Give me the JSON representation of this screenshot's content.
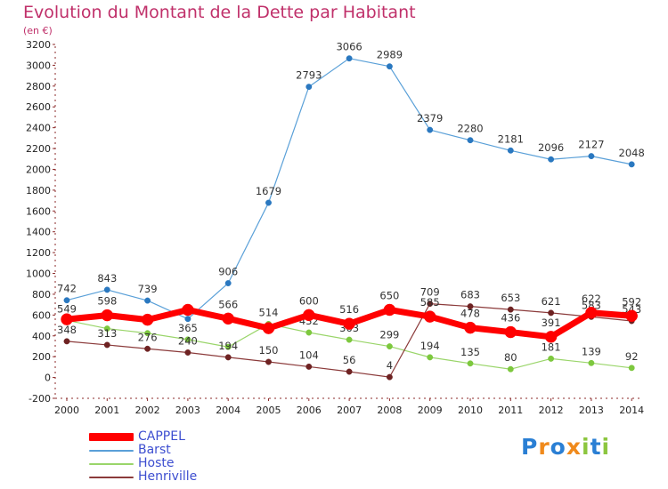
{
  "header": {
    "title": "Evolution du Montant de la Dette par Habitant",
    "subtitle": "(en €)"
  },
  "logo": {
    "text": "Proxiti",
    "letters": [
      {
        "char": "P",
        "color": "#2a7fd4"
      },
      {
        "char": "r",
        "color": "#f08a1c"
      },
      {
        "char": "o",
        "color": "#2a7fd4"
      },
      {
        "char": "x",
        "color": "#f08a1c"
      },
      {
        "char": "i",
        "color": "#8cc63f"
      },
      {
        "char": "t",
        "color": "#2a7fd4"
      },
      {
        "char": "i",
        "color": "#8cc63f"
      }
    ]
  },
  "chart_data": {
    "type": "line",
    "title": "Evolution du Montant de la Dette par Habitant",
    "subtitle": "(en €)",
    "xlabel": "",
    "ylabel": "",
    "x": [
      "2000",
      "2001",
      "2002",
      "2003",
      "2004",
      "2005",
      "2006",
      "2007",
      "2008",
      "2009",
      "2010",
      "2011",
      "2012",
      "2013",
      "2014"
    ],
    "ylim": [
      -200,
      3200
    ],
    "yticks": [
      -200,
      0,
      200,
      400,
      600,
      800,
      1000,
      1200,
      1400,
      1600,
      1800,
      2000,
      2200,
      2400,
      2600,
      2800,
      3000,
      3200
    ],
    "grid": false,
    "legend_position": "bottom-left",
    "series": [
      {
        "name": "Barst",
        "color": "#5aa0d8",
        "marker_color": "#2a78c0",
        "values": [
          742,
          843,
          739,
          563,
          906,
          1679,
          2793,
          3066,
          2989,
          2379,
          2280,
          2181,
          2096,
          2127,
          2048
        ],
        "labels": [
          "742",
          "843",
          "739",
          "",
          "906",
          "1679",
          "2793",
          "3066",
          "2989",
          "2379",
          "2280",
          "2181",
          "2096",
          "2127",
          "2048"
        ]
      },
      {
        "name": "Hoste",
        "color": "#9ad56a",
        "marker_color": "#7dc83e",
        "values": [
          549,
          470,
          426,
          365,
          294,
          514,
          432,
          363,
          299,
          194,
          135,
          80,
          181,
          139,
          92
        ],
        "labels": [
          "549",
          "",
          "",
          "365",
          "",
          "514",
          "432",
          "363",
          "299",
          "194",
          "135",
          "80",
          "181",
          "139",
          "92"
        ]
      },
      {
        "name": "Henriville",
        "color": "#8b3a3a",
        "marker_color": "#6e2222",
        "values": [
          348,
          313,
          276,
          240,
          194,
          150,
          104,
          56,
          4,
          709,
          683,
          653,
          621,
          583,
          543
        ],
        "labels": [
          "348",
          "313",
          "276",
          "240",
          "194",
          "150",
          "104",
          "56",
          "4",
          "709",
          "683",
          "653",
          "621",
          "583",
          "543"
        ]
      },
      {
        "name": "CAPPEL",
        "color": "#ff0000",
        "marker_color": "#ff0000",
        "values": [
          559,
          598,
          555,
          650,
          566,
          474,
          600,
          516,
          650,
          585,
          478,
          436,
          391,
          622,
          592
        ],
        "labels": [
          "",
          "598",
          "",
          "",
          "566",
          "",
          "600",
          "516",
          "650",
          "585",
          "478",
          "436",
          "391",
          "622",
          "592"
        ]
      }
    ]
  }
}
